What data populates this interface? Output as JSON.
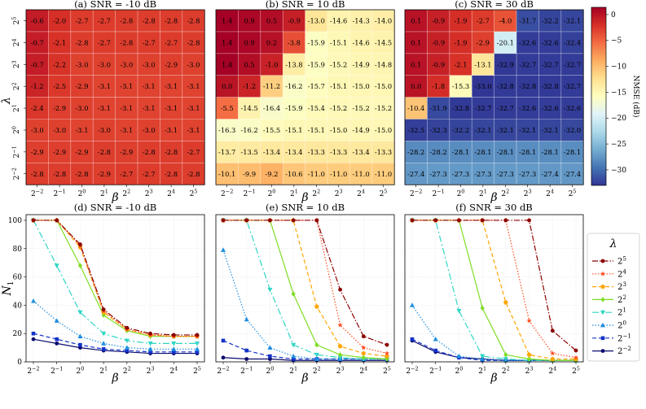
{
  "chart_data": [
    {
      "type": "heatmap",
      "title": "(a) SNR = -10 dB",
      "xlabel": "β",
      "ylabel": "λ",
      "x_ticks": [
        {
          "b": "2",
          "e": "−2"
        },
        {
          "b": "2",
          "e": "−1"
        },
        {
          "b": "2",
          "e": "0"
        },
        {
          "b": "2",
          "e": "1"
        },
        {
          "b": "2",
          "e": "2"
        },
        {
          "b": "2",
          "e": "3"
        },
        {
          "b": "2",
          "e": "4"
        },
        {
          "b": "2",
          "e": "5"
        }
      ],
      "y_ticks": [
        {
          "b": "2",
          "e": "5"
        },
        {
          "b": "2",
          "e": "4"
        },
        {
          "b": "2",
          "e": "3"
        },
        {
          "b": "2",
          "e": "2"
        },
        {
          "b": "2",
          "e": "1"
        },
        {
          "b": "2",
          "e": "0"
        },
        {
          "b": "2",
          "e": "−1"
        },
        {
          "b": "2",
          "e": "−2"
        }
      ],
      "values": [
        [
          -0.6,
          -2.0,
          -2.7,
          -2.7,
          -2.8,
          -2.8,
          -2.8,
          -2.8
        ],
        [
          -0.7,
          -2.1,
          -2.8,
          -2.7,
          -2.8,
          -2.7,
          -2.7,
          -2.8
        ],
        [
          -0.7,
          -2.2,
          -3.0,
          -3.0,
          -3.0,
          -3.0,
          -2.9,
          -3.0
        ],
        [
          -1.2,
          -2.5,
          -2.9,
          -3.1,
          -3.1,
          -3.1,
          -3.1,
          -3.1
        ],
        [
          -2.4,
          -2.9,
          -3.0,
          -3.1,
          -3.1,
          -3.1,
          -3.1,
          -3.1
        ],
        [
          -3.0,
          -3.0,
          -3.1,
          -3.0,
          -3.1,
          -3.0,
          -3.1,
          -3.1
        ],
        [
          -2.9,
          -2.9,
          -2.9,
          -2.8,
          -2.9,
          -2.8,
          -2.8,
          -2.7
        ],
        [
          -2.8,
          -2.8,
          -2.8,
          -2.9,
          -2.7,
          -2.7,
          -2.8,
          -2.8
        ]
      ]
    },
    {
      "type": "heatmap",
      "title": "(b) SNR = 10 dB",
      "xlabel": "β",
      "ylabel": "",
      "x_ticks": [
        {
          "b": "2",
          "e": "−2"
        },
        {
          "b": "2",
          "e": "−1"
        },
        {
          "b": "2",
          "e": "0"
        },
        {
          "b": "2",
          "e": "1"
        },
        {
          "b": "2",
          "e": "2"
        },
        {
          "b": "2",
          "e": "3"
        },
        {
          "b": "2",
          "e": "4"
        },
        {
          "b": "2",
          "e": "5"
        }
      ],
      "y_ticks": [],
      "values": [
        [
          1.4,
          0.9,
          0.5,
          -0.9,
          -13.0,
          -14.6,
          -14.3,
          -14.0
        ],
        [
          1.4,
          0.9,
          0.2,
          -3.8,
          -15.9,
          -15.1,
          -14.6,
          -14.5
        ],
        [
          1.4,
          0.5,
          -1.0,
          -13.8,
          -15.9,
          -15.2,
          -14.9,
          -14.8
        ],
        [
          0.0,
          -1.2,
          -11.2,
          -16.2,
          -15.7,
          -15.1,
          -15.0,
          -15.0
        ],
        [
          -5.5,
          -14.5,
          -16.4,
          -15.9,
          -15.4,
          -15.2,
          -15.2,
          -15.2
        ],
        [
          -16.3,
          -16.2,
          -15.5,
          -15.1,
          -15.1,
          -15.0,
          -14.9,
          -15.0
        ],
        [
          -13.7,
          -13.5,
          -13.4,
          -13.4,
          -13.3,
          -13.3,
          -13.4,
          -13.3
        ],
        [
          -10.1,
          -9.9,
          -9.2,
          -10.6,
          -11.0,
          -11.0,
          -11.0,
          -11.0
        ]
      ]
    },
    {
      "type": "heatmap",
      "title": "(c) SNR = 30 dB",
      "xlabel": "β",
      "ylabel": "",
      "x_ticks": [
        {
          "b": "2",
          "e": "−2"
        },
        {
          "b": "2",
          "e": "−1"
        },
        {
          "b": "2",
          "e": "0"
        },
        {
          "b": "2",
          "e": "1"
        },
        {
          "b": "2",
          "e": "2"
        },
        {
          "b": "2",
          "e": "3"
        },
        {
          "b": "2",
          "e": "4"
        },
        {
          "b": "2",
          "e": "5"
        }
      ],
      "y_ticks": [],
      "values": [
        [
          0.1,
          -0.9,
          -1.9,
          -2.7,
          -4.0,
          -31.7,
          -32.2,
          -32.1
        ],
        [
          0.1,
          -0.9,
          -1.9,
          -2.9,
          -20.1,
          -32.6,
          -32.6,
          -32.4
        ],
        [
          0.1,
          -0.9,
          -2.1,
          -13.1,
          -32.9,
          -32.7,
          -32.7,
          -32.7
        ],
        [
          0.0,
          -1.8,
          -15.3,
          -33.0,
          -32.8,
          -32.8,
          -32.8,
          -32.7
        ],
        [
          -10.4,
          -31.9,
          -32.8,
          -32.7,
          -32.7,
          -32.6,
          -32.6,
          -32.6
        ],
        [
          -32.5,
          -32.3,
          -32.2,
          -32.1,
          -32.1,
          -32.1,
          -32.1,
          -32.0
        ],
        [
          -28.2,
          -28.2,
          -28.1,
          -28.1,
          -28.1,
          -28.1,
          -28.1,
          -28.1
        ],
        [
          -27.4,
          -27.3,
          -27.3,
          -27.3,
          -27.3,
          -27.3,
          -27.4,
          -27.4
        ]
      ]
    },
    {
      "type": "line",
      "title": "(d) SNR = -10 dB",
      "xlabel": "β",
      "ylabel_base": "N",
      "ylabel_sub": "1",
      "x": [
        0,
        1,
        2,
        3,
        4,
        5,
        6,
        7
      ],
      "x_ticks": [
        {
          "b": "2",
          "e": "−2"
        },
        {
          "b": "2",
          "e": "−1"
        },
        {
          "b": "2",
          "e": "0"
        },
        {
          "b": "2",
          "e": "1"
        },
        {
          "b": "2",
          "e": "2"
        },
        {
          "b": "2",
          "e": "3"
        },
        {
          "b": "2",
          "e": "4"
        },
        {
          "b": "2",
          "e": "5"
        }
      ],
      "ylim": [
        0,
        104
      ],
      "y_ticks": [
        "0",
        "20",
        "40",
        "60",
        "80",
        "100"
      ],
      "series": [
        {
          "name": "2^5",
          "values": [
            100,
            100,
            83,
            37,
            24,
            20,
            19,
            19
          ]
        },
        {
          "name": "2^4",
          "values": [
            100,
            100,
            82,
            36,
            23,
            19,
            18,
            18
          ]
        },
        {
          "name": "2^3",
          "values": [
            100,
            100,
            81,
            35,
            23,
            19,
            18,
            18
          ]
        },
        {
          "name": "2^2",
          "values": [
            100,
            100,
            68,
            33,
            22,
            18,
            18,
            18
          ]
        },
        {
          "name": "2^1",
          "values": [
            100,
            68,
            35,
            20,
            15,
            13,
            13,
            13
          ]
        },
        {
          "name": "2^0",
          "values": [
            43,
            29,
            18,
            13,
            10,
            9,
            9,
            9
          ]
        },
        {
          "name": "2^-1",
          "values": [
            20,
            16,
            12,
            9,
            8,
            7,
            7,
            7
          ]
        },
        {
          "name": "2^-2",
          "values": [
            16,
            13,
            10,
            8,
            7,
            6,
            6,
            6
          ]
        }
      ]
    },
    {
      "type": "line",
      "title": "(e) SNR = 10 dB",
      "xlabel": "β",
      "x": [
        0,
        1,
        2,
        3,
        4,
        5,
        6,
        7
      ],
      "x_ticks": [
        {
          "b": "2",
          "e": "−2"
        },
        {
          "b": "2",
          "e": "−1"
        },
        {
          "b": "2",
          "e": "0"
        },
        {
          "b": "2",
          "e": "1"
        },
        {
          "b": "2",
          "e": "2"
        },
        {
          "b": "2",
          "e": "3"
        },
        {
          "b": "2",
          "e": "4"
        },
        {
          "b": "2",
          "e": "5"
        }
      ],
      "ylim": [
        0,
        104
      ],
      "series": [
        {
          "name": "2^5",
          "values": [
            100,
            100,
            100,
            100,
            100,
            51,
            18,
            12
          ]
        },
        {
          "name": "2^4",
          "values": [
            100,
            100,
            100,
            100,
            100,
            26,
            10,
            6
          ]
        },
        {
          "name": "2^3",
          "values": [
            100,
            100,
            100,
            100,
            39,
            11,
            6,
            4
          ]
        },
        {
          "name": "2^2",
          "values": [
            100,
            100,
            100,
            48,
            12,
            5,
            3,
            2
          ]
        },
        {
          "name": "2^1",
          "values": [
            100,
            100,
            51,
            12,
            5,
            3,
            2,
            2
          ]
        },
        {
          "name": "2^0",
          "values": [
            79,
            30,
            10,
            4,
            2,
            2,
            2,
            2
          ]
        },
        {
          "name": "2^-1",
          "values": [
            15,
            8,
            4,
            2,
            2,
            2,
            2,
            2
          ]
        },
        {
          "name": "2^-2",
          "values": [
            3,
            2,
            2,
            1,
            1,
            1,
            1,
            1
          ]
        }
      ]
    },
    {
      "type": "line",
      "title": "(f) SNR = 30 dB",
      "xlabel": "β",
      "x": [
        0,
        1,
        2,
        3,
        4,
        5,
        6,
        7
      ],
      "x_ticks": [
        {
          "b": "2",
          "e": "−2"
        },
        {
          "b": "2",
          "e": "−1"
        },
        {
          "b": "2",
          "e": "0"
        },
        {
          "b": "2",
          "e": "1"
        },
        {
          "b": "2",
          "e": "2"
        },
        {
          "b": "2",
          "e": "3"
        },
        {
          "b": "2",
          "e": "4"
        },
        {
          "b": "2",
          "e": "5"
        }
      ],
      "ylim": [
        0,
        104
      ],
      "series": [
        {
          "name": "2^5",
          "values": [
            100,
            100,
            100,
            100,
            100,
            100,
            22,
            8
          ]
        },
        {
          "name": "2^4",
          "values": [
            100,
            100,
            100,
            100,
            100,
            29,
            6,
            3
          ]
        },
        {
          "name": "2^3",
          "values": [
            100,
            100,
            100,
            100,
            42,
            5,
            2,
            2
          ]
        },
        {
          "name": "2^2",
          "values": [
            100,
            100,
            100,
            38,
            5,
            2,
            1,
            1
          ]
        },
        {
          "name": "2^1",
          "values": [
            100,
            100,
            36,
            4,
            2,
            1,
            1,
            1
          ]
        },
        {
          "name": "2^0",
          "values": [
            40,
            16,
            4,
            2,
            1,
            1,
            1,
            1
          ]
        },
        {
          "name": "2^-1",
          "values": [
            16,
            8,
            3,
            1,
            1,
            1,
            1,
            1
          ]
        },
        {
          "name": "2^-2",
          "values": [
            15,
            7,
            3,
            2,
            1,
            1,
            1,
            1
          ]
        }
      ]
    }
  ],
  "colorbar": {
    "label": "NMSE (dB)",
    "range": [
      -33,
      1.4
    ],
    "ticks": [
      "0",
      "−5",
      "−10",
      "−15",
      "−20",
      "−25",
      "−30"
    ],
    "tick_values": [
      0,
      -5,
      -10,
      -15,
      -20,
      -25,
      -30
    ]
  },
  "legend": {
    "title": "λ",
    "entries": [
      {
        "b": "2",
        "e": "5",
        "color": "#8b0000",
        "dash": "7,2,1.5,2",
        "marker": "circle"
      },
      {
        "b": "2",
        "e": "4",
        "color": "#ff4e22",
        "dash": "1.5,2",
        "marker": "star"
      },
      {
        "b": "2",
        "e": "3",
        "color": "#ffa500",
        "dash": "5,3",
        "marker": "pentagon"
      },
      {
        "b": "2",
        "e": "2",
        "color": "#7fdd22",
        "dash": "",
        "marker": "diamond"
      },
      {
        "b": "2",
        "e": "1",
        "color": "#2fd6c5",
        "dash": "8,3,2,3",
        "marker": "tri-down"
      },
      {
        "b": "2",
        "e": "0",
        "color": "#1f8fdf",
        "dash": "1.5,2",
        "marker": "tri-up"
      },
      {
        "b": "2",
        "e": "−1",
        "color": "#1432c8",
        "dash": "5,3",
        "marker": "square"
      },
      {
        "b": "2",
        "e": "−2",
        "color": "#0a0a6e",
        "dash": "",
        "marker": "circle"
      }
    ]
  }
}
